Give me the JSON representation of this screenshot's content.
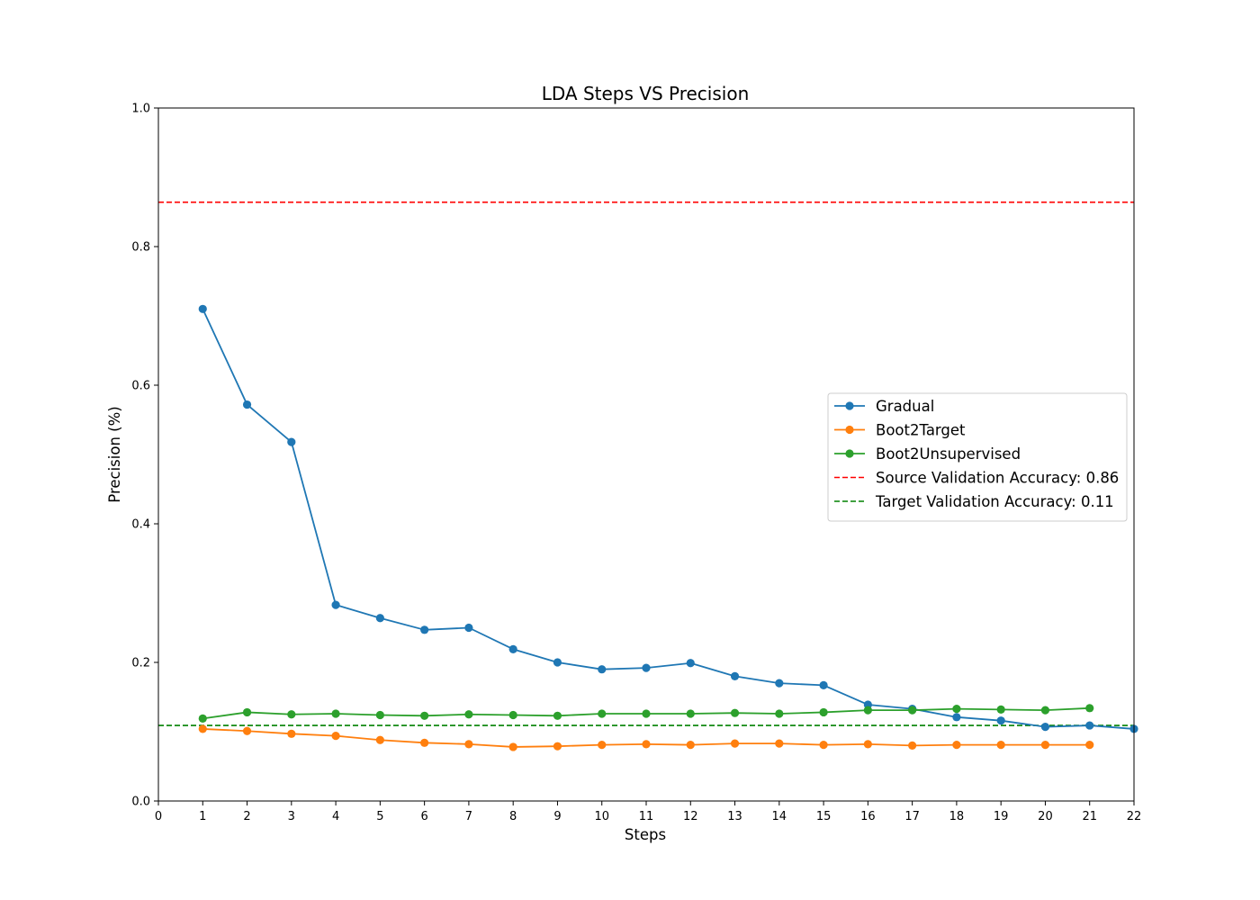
{
  "chart_data": {
    "type": "line",
    "title": "LDA Steps VS Precision",
    "xlabel": "Steps",
    "ylabel": "Precision (%)",
    "xlim": [
      0,
      22
    ],
    "ylim": [
      0.0,
      1.0
    ],
    "x_ticks": [
      "0",
      "1",
      "2",
      "3",
      "4",
      "5",
      "6",
      "7",
      "8",
      "9",
      "10",
      "11",
      "12",
      "13",
      "14",
      "15",
      "16",
      "17",
      "18",
      "19",
      "20",
      "21",
      "22"
    ],
    "y_ticks": [
      "0.0",
      "0.2",
      "0.4",
      "0.6",
      "0.8",
      "1.0"
    ],
    "grid": false,
    "legend_position": "center-right",
    "series": [
      {
        "name": "Gradual",
        "color": "#1f77b4",
        "marker": "circle",
        "x": [
          1,
          2,
          3,
          4,
          5,
          6,
          7,
          8,
          9,
          10,
          11,
          12,
          13,
          14,
          15,
          16,
          17,
          18,
          19,
          20,
          21,
          22
        ],
        "values": [
          0.71,
          0.572,
          0.518,
          0.283,
          0.264,
          0.247,
          0.25,
          0.219,
          0.2,
          0.19,
          0.192,
          0.199,
          0.18,
          0.17,
          0.167,
          0.139,
          0.133,
          0.121,
          0.116,
          0.107,
          0.109,
          0.104
        ]
      },
      {
        "name": "Boot2Target",
        "color": "#ff7f0e",
        "marker": "circle",
        "x": [
          1,
          2,
          3,
          4,
          5,
          6,
          7,
          8,
          9,
          10,
          11,
          12,
          13,
          14,
          15,
          16,
          17,
          18,
          19,
          20,
          21
        ],
        "values": [
          0.104,
          0.101,
          0.097,
          0.094,
          0.088,
          0.084,
          0.082,
          0.078,
          0.079,
          0.081,
          0.082,
          0.081,
          0.083,
          0.083,
          0.081,
          0.082,
          0.08,
          0.081,
          0.081,
          0.081,
          0.081
        ]
      },
      {
        "name": "Boot2Unsupervised",
        "color": "#2ca02c",
        "marker": "circle",
        "x": [
          1,
          2,
          3,
          4,
          5,
          6,
          7,
          8,
          9,
          10,
          11,
          12,
          13,
          14,
          15,
          16,
          17,
          18,
          19,
          20,
          21
        ],
        "values": [
          0.119,
          0.128,
          0.125,
          0.126,
          0.124,
          0.123,
          0.125,
          0.124,
          0.123,
          0.126,
          0.126,
          0.126,
          0.127,
          0.126,
          0.128,
          0.131,
          0.131,
          0.133,
          0.132,
          0.131,
          0.134
        ]
      }
    ],
    "reference_lines": [
      {
        "name": "Source Validation Accuracy: 0.86",
        "value": 0.864,
        "color": "#ff0000",
        "style": "dashed"
      },
      {
        "name": "Target Validation Accuracy: 0.11",
        "value": 0.109,
        "color": "#008000",
        "style": "dashed"
      }
    ]
  }
}
